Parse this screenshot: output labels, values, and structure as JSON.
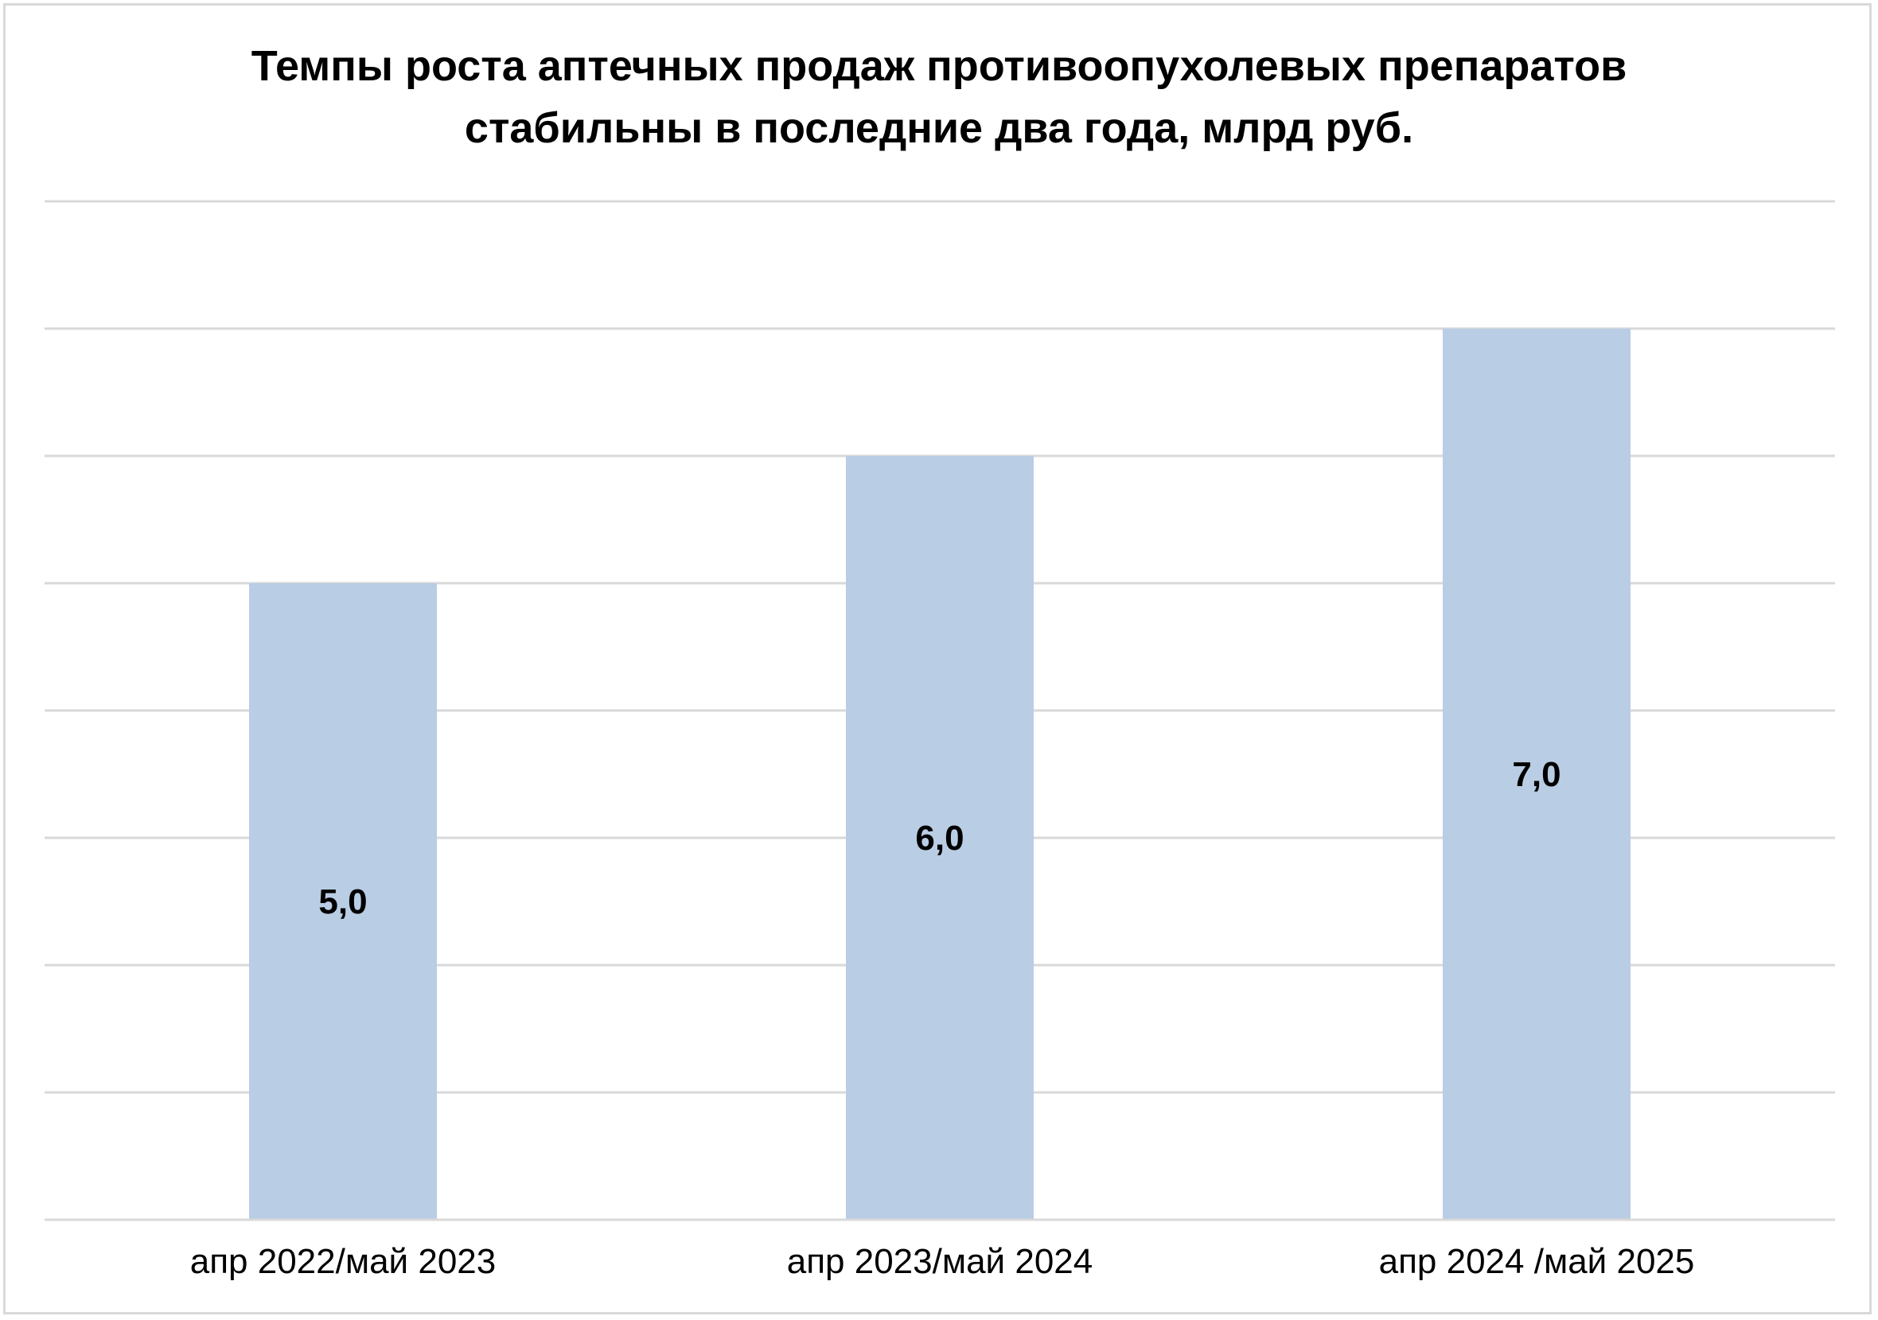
{
  "chart_data": {
    "type": "bar",
    "title": "Темпы роста аптечных продаж противоопухолевых препаратов стабильны в последние два года, млрд руб.",
    "title_lines": [
      "Темпы роста аптечных продаж противоопухолевых препаратов",
      "стабильны в последние два года, млрд руб."
    ],
    "categories": [
      "апр 2022/май 2023",
      "апр 2023/май 2024",
      "апр 2024 /май 2025"
    ],
    "values": [
      5.0,
      6.0,
      7.0
    ],
    "value_labels": [
      "5,0",
      "6,0",
      "7,0"
    ],
    "xlabel": "",
    "ylabel": "",
    "ylim": [
      0,
      8
    ],
    "y_tick_step": 1,
    "y_tick_labels_shown": false,
    "grid": true,
    "legend": "none",
    "colors": {
      "bar": "#b9cde4",
      "grid": "#d9d9d9",
      "axis": "#d9d9d9",
      "text": "#000000"
    }
  }
}
